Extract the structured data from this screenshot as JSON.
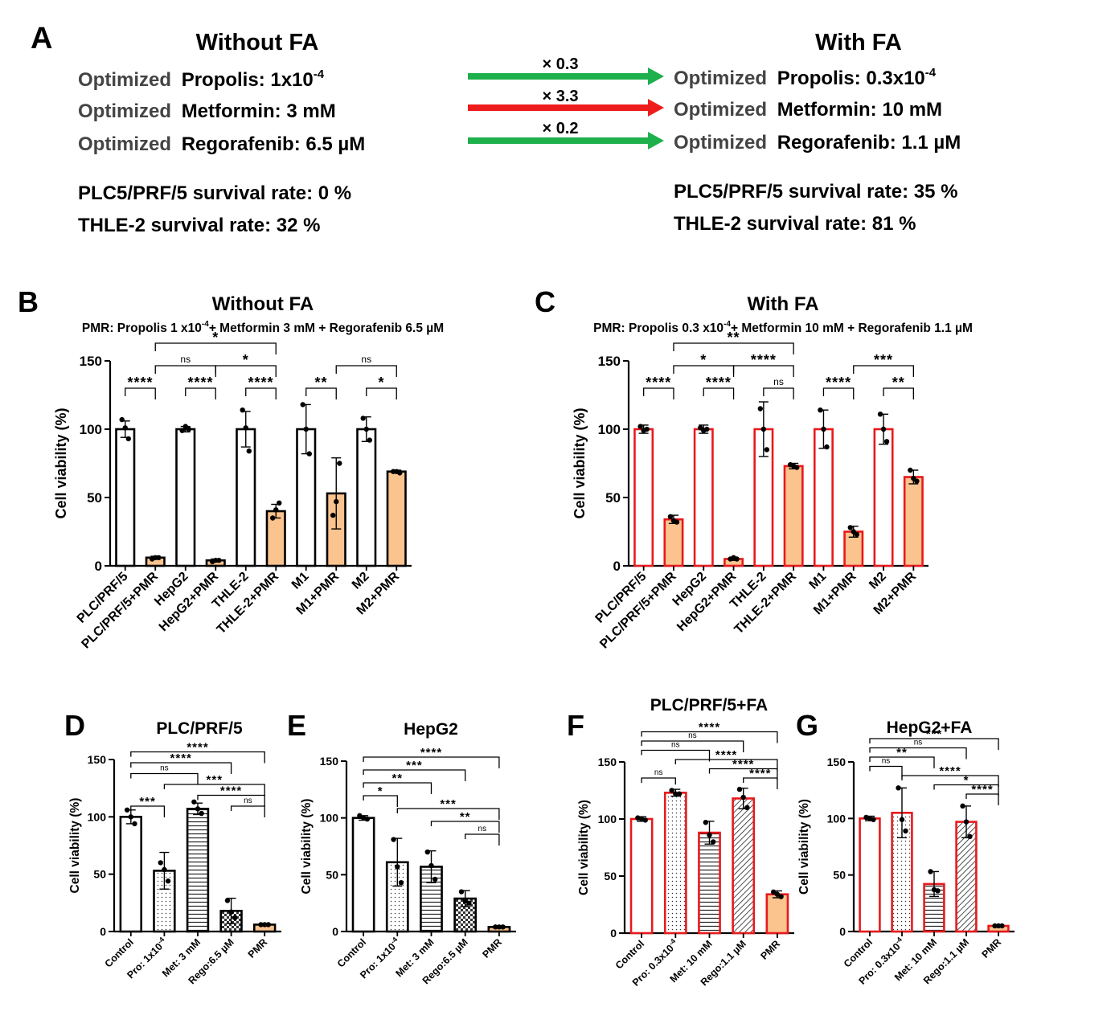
{
  "panelA": {
    "letter": "A",
    "left_title": "Without FA",
    "right_title": "With FA",
    "prefix": "Optimized",
    "rows": [
      {
        "left": "Propolis: 1x10",
        "left_sup": "-4",
        "mult": "× 0.3",
        "right": "Propolis: 0.3x10",
        "right_sup": "-4",
        "arrow_color": "#1eb04c"
      },
      {
        "left": "Metformin: 3 mM",
        "left_sup": "",
        "mult": "× 3.3",
        "right": "Metformin: 10 mM",
        "right_sup": "",
        "arrow_color": "#ee1c1c"
      },
      {
        "left": "Regorafenib: 6.5 µM",
        "left_sup": "",
        "mult": "× 0.2",
        "right": "Regorafenib: 1.1 µM",
        "right_sup": "",
        "arrow_color": "#1eb04c"
      }
    ],
    "left_survival": [
      "PLC5/PRF/5 survival rate: 0 %",
      "THLE-2 survival rate: 32 %"
    ],
    "right_survival": [
      "PLC5/PRF/5 survival rate: 35 %",
      "THLE-2 survival rate: 81 %"
    ]
  },
  "colors": {
    "black": "#000000",
    "red": "#e8191c",
    "orange": "#fbc38e"
  },
  "chart_data": [
    {
      "panel": "B",
      "type": "bar",
      "title": "Without FA",
      "subtitle_pre": "PMR: Propolis 1 x10",
      "subtitle_sup": "-4",
      "subtitle_post": "+ Metformin 3 mM + Regorafenib 6.5 µM",
      "ylabel": "Cell viability (%)",
      "ylim": [
        0,
        150
      ],
      "yticks": [
        0,
        50,
        100,
        150
      ],
      "categories": [
        "PLC/PRF/5",
        "PLC/PRF/5+PMR",
        "HepG2",
        "HepG2+PMR",
        "THLE-2",
        "THLE-2+PMR",
        "M1",
        "M1+PMR",
        "M2",
        "M2+PMR"
      ],
      "values": [
        100,
        6,
        100,
        4,
        100,
        40,
        100,
        53,
        100,
        69
      ],
      "errors": [
        6,
        1,
        2,
        1,
        13,
        5,
        18,
        26,
        9,
        1
      ],
      "points": [
        [
          107,
          101,
          93
        ],
        [
          5,
          6,
          6
        ],
        [
          99,
          102,
          100
        ],
        [
          3,
          4,
          4
        ],
        [
          114,
          101,
          84
        ],
        [
          35,
          41,
          46
        ],
        [
          118,
          100,
          82
        ],
        [
          37,
          47,
          75
        ],
        [
          108,
          100,
          92
        ],
        [
          69,
          69,
          68
        ]
      ],
      "fills": [
        "white",
        "orange",
        "white",
        "orange",
        "white",
        "orange",
        "white",
        "orange",
        "white",
        "orange"
      ],
      "patterns": [
        "none",
        "none",
        "none",
        "none",
        "none",
        "none",
        "none",
        "none",
        "none",
        "none"
      ],
      "edge": "black",
      "comparisons": [
        {
          "from": 0,
          "to": 1,
          "label": "****",
          "level": 0
        },
        {
          "from": 2,
          "to": 3,
          "label": "****",
          "level": 0
        },
        {
          "from": 4,
          "to": 5,
          "label": "****",
          "level": 0
        },
        {
          "from": 6,
          "to": 7,
          "label": "**",
          "level": 0
        },
        {
          "from": 8,
          "to": 9,
          "label": "*",
          "level": 0
        },
        {
          "from": 1,
          "to": 3,
          "label": "ns",
          "level": 1
        },
        {
          "from": 3,
          "to": 5,
          "label": "*",
          "level": 1
        },
        {
          "from": 7,
          "to": 9,
          "label": "ns",
          "level": 1
        },
        {
          "from": 1,
          "to": 5,
          "label": "*",
          "level": 2
        }
      ]
    },
    {
      "panel": "C",
      "type": "bar",
      "title": "With FA",
      "subtitle_pre": "PMR: Propolis 0.3 x10",
      "subtitle_sup": "-4",
      "subtitle_post": "+ Metformin 10 mM + Regorafenib 1.1 µM",
      "ylabel": "Cell viability (%)",
      "ylim": [
        0,
        150
      ],
      "yticks": [
        0,
        50,
        100,
        150
      ],
      "categories": [
        "PLC/PRF/5",
        "PLC/PRF/5+PMR",
        "HepG2",
        "HepG2+PMR",
        "THLE-2",
        "THLE-2+PMR",
        "M1",
        "M1+PMR",
        "M2",
        "M2+PMR"
      ],
      "values": [
        100,
        34,
        100,
        5,
        100,
        73,
        100,
        25,
        100,
        65
      ],
      "errors": [
        3,
        3,
        3,
        1,
        20,
        2,
        14,
        4,
        11,
        5
      ],
      "points": [
        [
          102,
          99,
          100
        ],
        [
          36,
          33,
          32
        ],
        [
          101,
          99,
          100
        ],
        [
          5,
          6,
          5
        ],
        [
          115,
          100,
          85
        ],
        [
          74,
          73,
          72
        ],
        [
          114,
          100,
          87
        ],
        [
          28,
          25,
          23
        ],
        [
          111,
          100,
          91
        ],
        [
          70,
          64,
          62
        ]
      ],
      "fills": [
        "white",
        "orange",
        "white",
        "orange",
        "white",
        "orange",
        "white",
        "orange",
        "white",
        "orange"
      ],
      "patterns": [
        "none",
        "none",
        "none",
        "none",
        "none",
        "none",
        "none",
        "none",
        "none",
        "none"
      ],
      "edge": "red",
      "comparisons": [
        {
          "from": 0,
          "to": 1,
          "label": "****",
          "level": 0
        },
        {
          "from": 2,
          "to": 3,
          "label": "****",
          "level": 0
        },
        {
          "from": 4,
          "to": 5,
          "label": "ns",
          "level": 0
        },
        {
          "from": 6,
          "to": 7,
          "label": "****",
          "level": 0
        },
        {
          "from": 8,
          "to": 9,
          "label": "**",
          "level": 0
        },
        {
          "from": 1,
          "to": 3,
          "label": "*",
          "level": 1
        },
        {
          "from": 3,
          "to": 5,
          "label": "****",
          "level": 1
        },
        {
          "from": 7,
          "to": 9,
          "label": "***",
          "level": 1
        },
        {
          "from": 1,
          "to": 5,
          "label": "**",
          "level": 2
        }
      ]
    },
    {
      "panel": "D",
      "type": "bar",
      "title": "PLC/PRF/5",
      "ylabel": "Cell viability (%)",
      "ylim": [
        0,
        150
      ],
      "yticks": [
        0,
        50,
        100,
        150
      ],
      "categories": [
        "Control",
        "Pro: 1x10^-4",
        "Met: 3 mM",
        "Rego:6.5 µM",
        "PMR"
      ],
      "values": [
        100,
        53,
        107,
        18,
        6
      ],
      "errors": [
        6,
        16,
        5,
        11,
        1
      ],
      "points": [
        [
          106,
          100,
          94
        ],
        [
          60,
          54,
          44
        ],
        [
          113,
          107,
          103
        ],
        [
          27,
          17,
          12
        ],
        [
          6,
          6,
          6
        ]
      ],
      "fills": [
        "white",
        "white",
        "white",
        "white",
        "orange"
      ],
      "patterns": [
        "none",
        "dots",
        "hlines",
        "checker",
        "none"
      ],
      "edge": "black",
      "comparisons": [
        {
          "from": 0,
          "to": 1,
          "label": "***",
          "level": 0
        },
        {
          "from": 3,
          "to": 4,
          "label": "ns",
          "level": 0
        },
        {
          "from": 2,
          "to": 4,
          "label": "****",
          "level": 1
        },
        {
          "from": 1,
          "to": 4,
          "label": "***",
          "level": 2
        },
        {
          "from": 0,
          "to": 2,
          "label": "ns",
          "level": 3
        },
        {
          "from": 0,
          "to": 3,
          "label": "****",
          "level": 4
        },
        {
          "from": 0,
          "to": 4,
          "label": "****",
          "level": 5
        }
      ]
    },
    {
      "panel": "E",
      "type": "bar",
      "title": "HepG2",
      "ylabel": "Cell viability (%)",
      "ylim": [
        0,
        150
      ],
      "yticks": [
        0,
        50,
        100,
        150
      ],
      "categories": [
        "Control",
        "Pro: 1x10^-4",
        "Met: 3 mM",
        "Rego:6.5 µM",
        "PMR"
      ],
      "values": [
        100,
        61,
        57,
        29,
        4
      ],
      "errors": [
        2,
        21,
        14,
        7,
        1
      ],
      "points": [
        [
          102,
          100,
          99
        ],
        [
          81,
          57,
          43
        ],
        [
          70,
          58,
          46
        ],
        [
          35,
          27,
          25
        ],
        [
          4,
          4,
          4
        ]
      ],
      "fills": [
        "white",
        "white",
        "white",
        "white",
        "orange"
      ],
      "patterns": [
        "none",
        "dots",
        "hlines",
        "checker",
        "none"
      ],
      "edge": "black",
      "comparisons": [
        {
          "from": 3,
          "to": 4,
          "label": "ns",
          "level": 0
        },
        {
          "from": 2,
          "to": 4,
          "label": "**",
          "level": 1
        },
        {
          "from": 1,
          "to": 4,
          "label": "***",
          "level": 2
        },
        {
          "from": 0,
          "to": 1,
          "label": "*",
          "level": 3
        },
        {
          "from": 0,
          "to": 2,
          "label": "**",
          "level": 4
        },
        {
          "from": 0,
          "to": 3,
          "label": "***",
          "level": 5
        },
        {
          "from": 0,
          "to": 4,
          "label": "****",
          "level": 6
        }
      ]
    },
    {
      "panel": "F",
      "type": "bar",
      "title": "PLC/PRF/5+FA",
      "ylabel": "Cell viability (%)",
      "ylim": [
        0,
        150
      ],
      "yticks": [
        0,
        50,
        100,
        150
      ],
      "categories": [
        "Control",
        "Pro: 0.3x10^-4",
        "Met: 10 mM",
        "Rego:1.1 µM",
        "PMR"
      ],
      "values": [
        100,
        123,
        88,
        118,
        34
      ],
      "errors": [
        2,
        3,
        10,
        9,
        3
      ],
      "points": [
        [
          101,
          100,
          99
        ],
        [
          125,
          122,
          122
        ],
        [
          97,
          86,
          80
        ],
        [
          126,
          119,
          110
        ],
        [
          36,
          34,
          32
        ]
      ],
      "fills": [
        "white",
        "white",
        "white",
        "white",
        "orange"
      ],
      "patterns": [
        "none",
        "dots",
        "hlines",
        "diag",
        "none"
      ],
      "edge": "red",
      "comparisons": [
        {
          "from": 0,
          "to": 1,
          "label": "ns",
          "level": 0
        },
        {
          "from": 3,
          "to": 4,
          "label": "****",
          "level": 0
        },
        {
          "from": 2,
          "to": 4,
          "label": "****",
          "level": 1
        },
        {
          "from": 1,
          "to": 4,
          "label": "****",
          "level": 2
        },
        {
          "from": 0,
          "to": 2,
          "label": "ns",
          "level": 3
        },
        {
          "from": 0,
          "to": 3,
          "label": "ns",
          "level": 4
        },
        {
          "from": 0,
          "to": 4,
          "label": "****",
          "level": 5
        }
      ]
    },
    {
      "panel": "G",
      "type": "bar",
      "title": "HepG2+FA",
      "ylabel": "Cell viability (%)",
      "ylim": [
        0,
        150
      ],
      "yticks": [
        0,
        50,
        100,
        150
      ],
      "categories": [
        "Control",
        "Pro: 0.3x10^-4",
        "Met: 10 mM",
        "Rego:1.1 µM",
        "PMR"
      ],
      "values": [
        100,
        105,
        42,
        97,
        5
      ],
      "errors": [
        2,
        22,
        11,
        14,
        1
      ],
      "points": [
        [
          101,
          100,
          99
        ],
        [
          127,
          99,
          89
        ],
        [
          53,
          37,
          36
        ],
        [
          111,
          97,
          84
        ],
        [
          5,
          5,
          5
        ]
      ],
      "fills": [
        "white",
        "white",
        "white",
        "white",
        "orange"
      ],
      "patterns": [
        "none",
        "dots",
        "hlines",
        "diag",
        "none"
      ],
      "edge": "red",
      "comparisons": [
        {
          "from": 3,
          "to": 4,
          "label": "****",
          "level": 0
        },
        {
          "from": 2,
          "to": 4,
          "label": "*",
          "level": 1
        },
        {
          "from": 1,
          "to": 4,
          "label": "****",
          "level": 2
        },
        {
          "from": 0,
          "to": 1,
          "label": "ns",
          "level": 3
        },
        {
          "from": 0,
          "to": 2,
          "label": "**",
          "level": 4
        },
        {
          "from": 0,
          "to": 3,
          "label": "ns",
          "level": 5
        },
        {
          "from": 0,
          "to": 4,
          "label": "***",
          "level": 6
        }
      ]
    }
  ]
}
